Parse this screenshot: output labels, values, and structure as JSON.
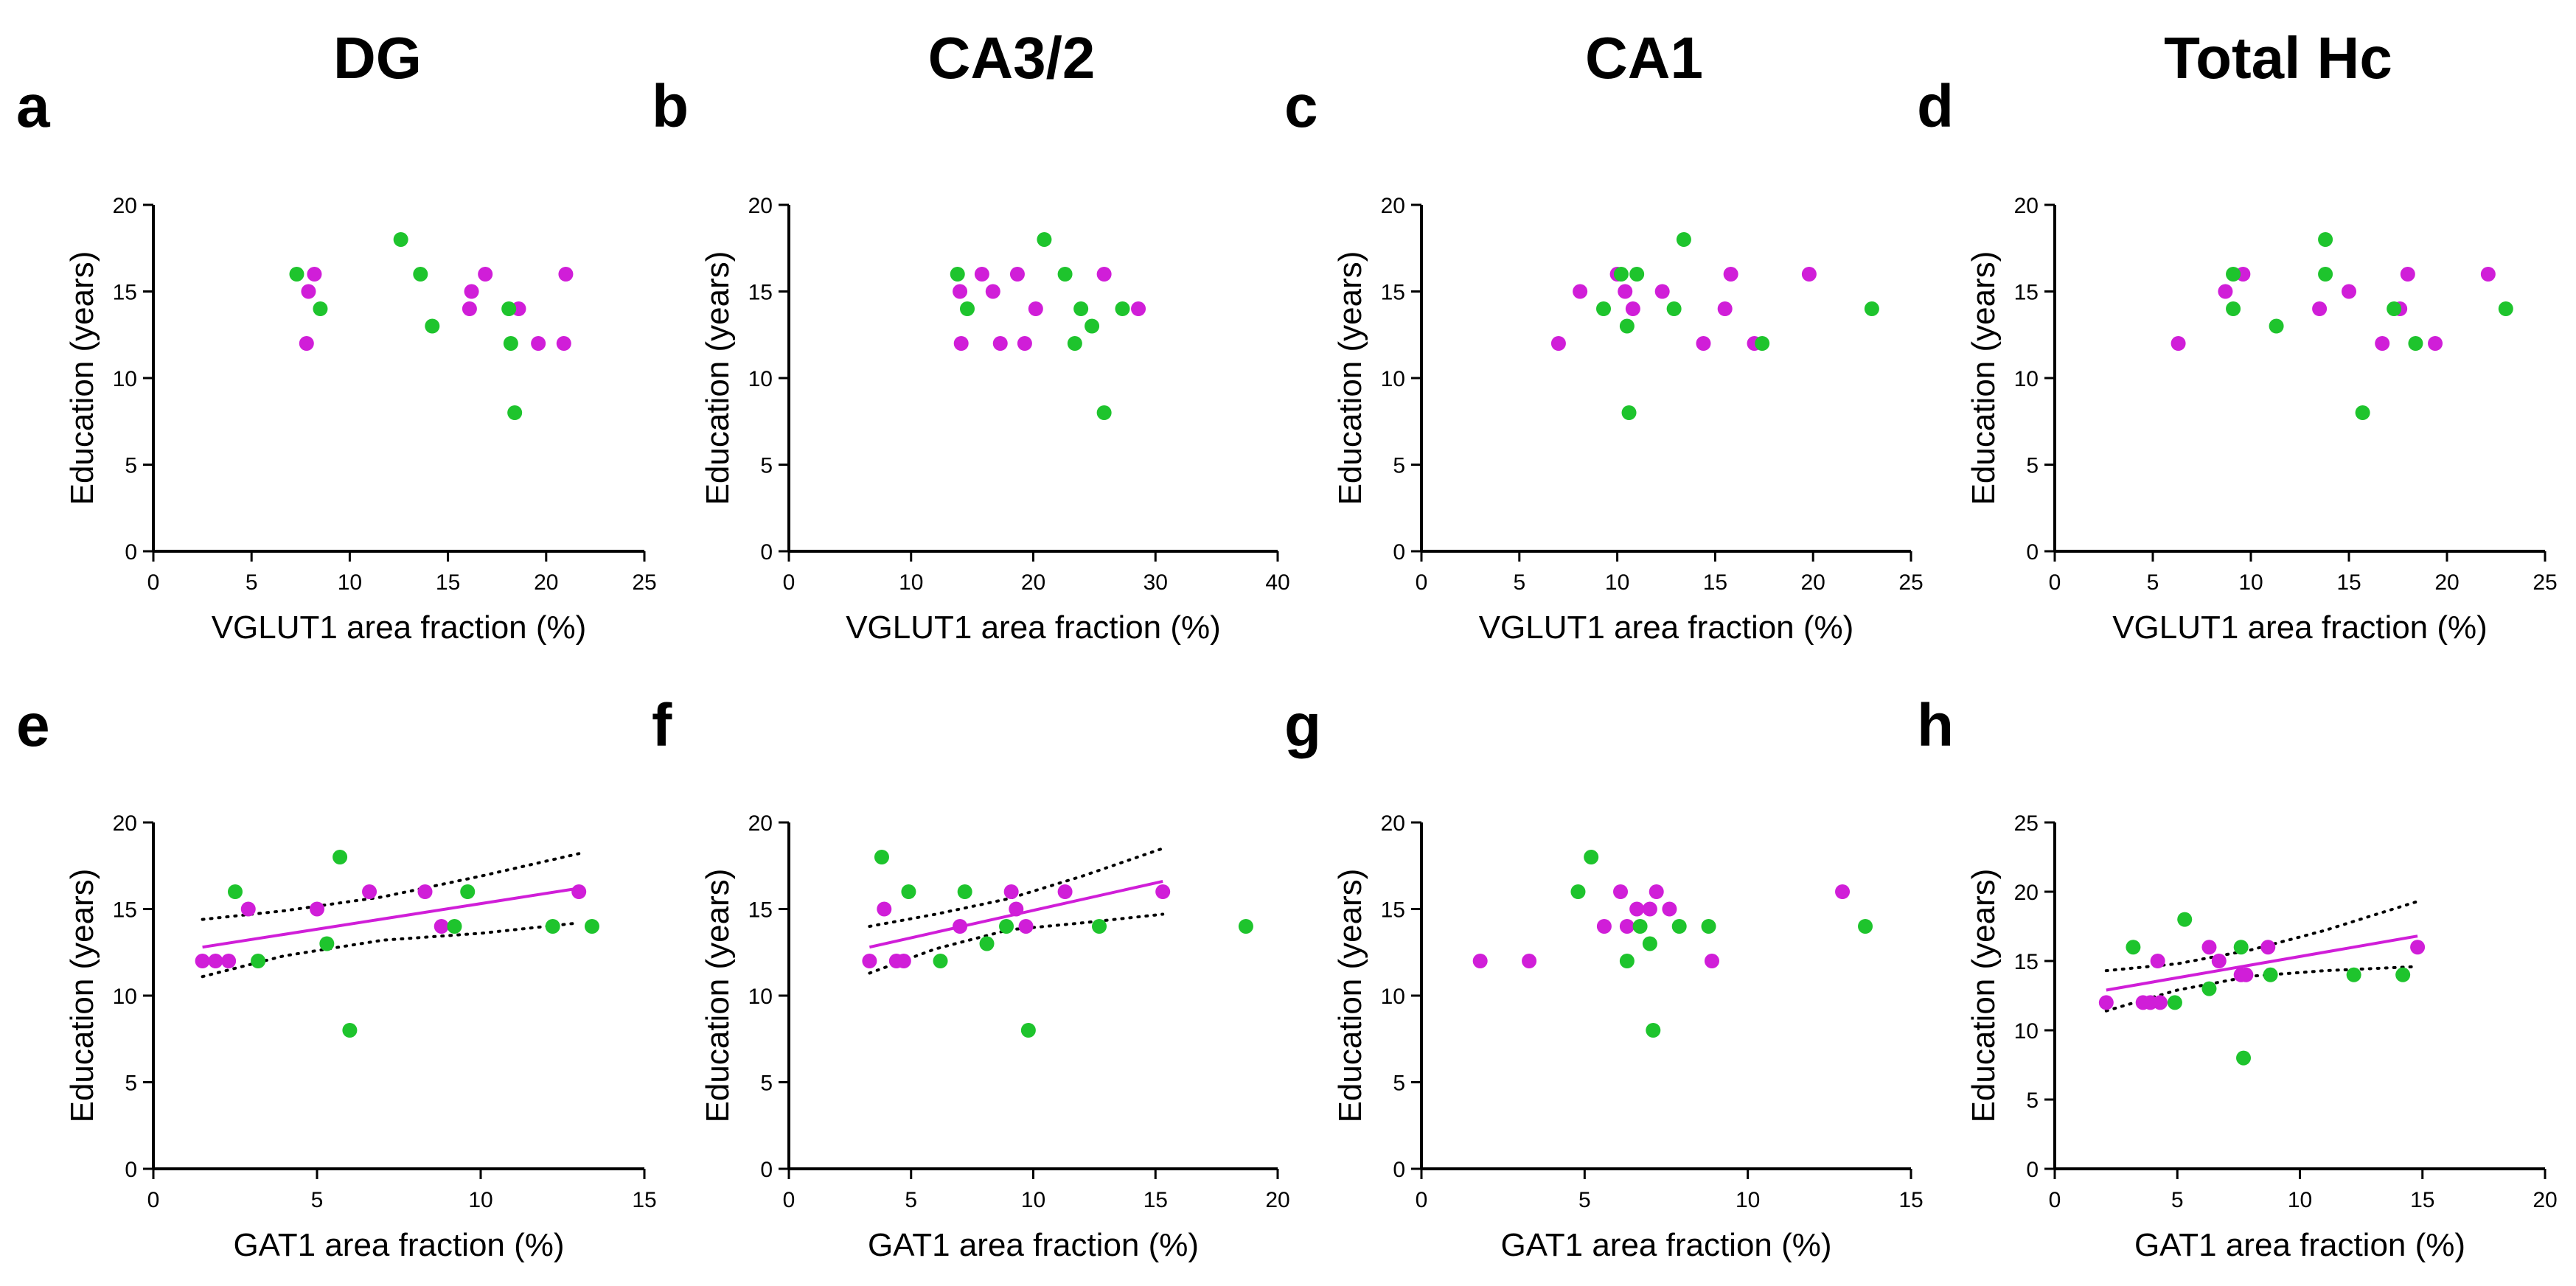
{
  "column_titles": [
    "DG",
    "CA3/2",
    "CA1",
    "Total Hc"
  ],
  "colors": {
    "group1": "#d01ed8",
    "group2": "#1ec42d",
    "fit_line": "#d01ed8",
    "ci_line": "#000000"
  },
  "chart_data": [
    {
      "panel": "a",
      "type": "scatter",
      "xlabel": "VGLUT1 area fraction (%)",
      "ylabel": "Education (years)",
      "xlim": [
        0,
        25
      ],
      "ylim": [
        0,
        20
      ],
      "xticks": [
        0,
        5,
        10,
        15,
        20,
        25
      ],
      "yticks": [
        0,
        5,
        10,
        15,
        20
      ],
      "series": [
        {
          "name": "group1",
          "color": "#d01ed8",
          "x": [
            7.9,
            8.2,
            7.8,
            16.2,
            16.1,
            16.9,
            18.6,
            19.6,
            20.9,
            21.0
          ],
          "y": [
            15,
            16,
            12,
            15,
            14,
            16,
            14,
            12,
            12,
            16
          ]
        },
        {
          "name": "group2",
          "color": "#1ec42d",
          "x": [
            7.3,
            8.5,
            12.6,
            13.6,
            14.2,
            18.1,
            18.2,
            18.4
          ],
          "y": [
            16,
            14,
            18,
            16,
            13,
            14,
            12,
            8
          ]
        }
      ]
    },
    {
      "panel": "b",
      "type": "scatter",
      "xlabel": "VGLUT1 area fraction (%)",
      "ylabel": "Education (years)",
      "xlim": [
        0,
        40
      ],
      "ylim": [
        0,
        20
      ],
      "xticks": [
        0,
        10,
        20,
        30,
        40
      ],
      "yticks": [
        0,
        5,
        10,
        15,
        20
      ],
      "series": [
        {
          "name": "group1",
          "color": "#d01ed8",
          "x": [
            14.0,
            14.1,
            15.8,
            16.7,
            17.3,
            18.7,
            19.3,
            20.2,
            25.8,
            28.6
          ],
          "y": [
            15,
            12,
            16,
            15,
            12,
            16,
            12,
            14,
            16,
            14
          ]
        },
        {
          "name": "group2",
          "color": "#1ec42d",
          "x": [
            13.8,
            14.6,
            20.9,
            22.6,
            23.4,
            23.9,
            24.8,
            25.8,
            27.3
          ],
          "y": [
            16,
            14,
            18,
            16,
            12,
            14,
            13,
            8,
            14
          ]
        }
      ]
    },
    {
      "panel": "c",
      "type": "scatter",
      "xlabel": "VGLUT1 area fraction (%)",
      "ylabel": "Education (years)",
      "xlim": [
        0,
        25
      ],
      "ylim": [
        0,
        20
      ],
      "xticks": [
        0,
        5,
        10,
        15,
        20,
        25
      ],
      "yticks": [
        0,
        5,
        10,
        15,
        20
      ],
      "series": [
        {
          "name": "group1",
          "color": "#d01ed8",
          "x": [
            7.0,
            8.1,
            10.0,
            10.4,
            10.8,
            12.3,
            14.4,
            15.5,
            15.8,
            17.0,
            19.8
          ],
          "y": [
            12,
            15,
            16,
            15,
            14,
            15,
            12,
            14,
            16,
            12,
            16
          ]
        },
        {
          "name": "group2",
          "color": "#1ec42d",
          "x": [
            9.3,
            10.2,
            10.5,
            10.6,
            11.0,
            12.9,
            13.4,
            17.4,
            23.0
          ],
          "y": [
            14,
            16,
            13,
            8,
            16,
            14,
            18,
            12,
            14
          ]
        }
      ]
    },
    {
      "panel": "d",
      "type": "scatter",
      "xlabel": "VGLUT1 area fraction (%)",
      "ylabel": "Education (years)",
      "xlim": [
        0,
        25
      ],
      "ylim": [
        0,
        20
      ],
      "xticks": [
        0,
        5,
        10,
        15,
        20,
        25
      ],
      "yticks": [
        0,
        5,
        10,
        15,
        20
      ],
      "series": [
        {
          "name": "group1",
          "color": "#d01ed8",
          "x": [
            6.3,
            8.7,
            9.6,
            13.5,
            15.0,
            16.7,
            17.6,
            18.0,
            19.4,
            22.1
          ],
          "y": [
            12,
            15,
            16,
            14,
            15,
            12,
            14,
            16,
            12,
            16
          ]
        },
        {
          "name": "group2",
          "color": "#1ec42d",
          "x": [
            9.1,
            9.1,
            11.3,
            13.8,
            13.8,
            15.7,
            17.3,
            18.4,
            23.0
          ],
          "y": [
            16,
            14,
            13,
            18,
            16,
            8,
            14,
            12,
            14
          ]
        }
      ]
    },
    {
      "panel": "e",
      "type": "scatter",
      "xlabel": "GAT1 area fraction (%)",
      "ylabel": "Education (years)",
      "xlim": [
        0,
        15
      ],
      "ylim": [
        0,
        20
      ],
      "xticks": [
        0,
        5,
        10,
        15
      ],
      "yticks": [
        0,
        5,
        10,
        15,
        20
      ],
      "series": [
        {
          "name": "group1",
          "color": "#d01ed8",
          "x": [
            1.5,
            1.9,
            2.3,
            2.9,
            5.0,
            6.6,
            8.3,
            8.8,
            13.0
          ],
          "y": [
            12,
            12,
            12,
            15,
            15,
            16,
            16,
            14,
            16
          ]
        },
        {
          "name": "group2",
          "color": "#1ec42d",
          "x": [
            2.5,
            3.2,
            5.3,
            5.7,
            6.0,
            9.2,
            9.6,
            12.2,
            13.4
          ],
          "y": [
            16,
            12,
            13,
            18,
            8,
            14,
            16,
            14,
            14
          ]
        }
      ],
      "fit": {
        "x": [
          1.5,
          13.0
        ],
        "y": [
          12.8,
          16.2
        ]
      },
      "ci_upper": {
        "x": [
          1.5,
          4,
          7,
          10,
          13.0
        ],
        "y": [
          14.4,
          14.9,
          15.7,
          16.9,
          18.2
        ]
      },
      "ci_lower": {
        "x": [
          1.5,
          4,
          7,
          10,
          13.0
        ],
        "y": [
          11.1,
          12.3,
          13.2,
          13.6,
          14.2
        ]
      }
    },
    {
      "panel": "f",
      "type": "scatter",
      "xlabel": "GAT1 area fraction (%)",
      "ylabel": "Education (years)",
      "xlim": [
        0,
        20
      ],
      "ylim": [
        0,
        20
      ],
      "xticks": [
        0,
        5,
        10,
        15,
        20
      ],
      "yticks": [
        0,
        5,
        10,
        15,
        20
      ],
      "series": [
        {
          "name": "group1",
          "color": "#d01ed8",
          "x": [
            3.3,
            3.9,
            4.4,
            4.7,
            7.0,
            9.1,
            9.3,
            9.7,
            11.3,
            15.3
          ],
          "y": [
            12,
            15,
            12,
            12,
            14,
            16,
            15,
            14,
            16,
            16
          ]
        },
        {
          "name": "group2",
          "color": "#1ec42d",
          "x": [
            3.8,
            4.9,
            6.2,
            7.2,
            8.1,
            8.9,
            9.8,
            12.7,
            18.7
          ],
          "y": [
            18,
            16,
            12,
            16,
            13,
            14,
            8,
            14,
            14
          ]
        }
      ],
      "fit": {
        "x": [
          3.3,
          15.3
        ],
        "y": [
          12.8,
          16.6
        ]
      },
      "ci_upper": {
        "x": [
          3.3,
          6,
          9,
          12,
          15.3
        ],
        "y": [
          14.0,
          14.7,
          15.6,
          16.9,
          18.5
        ]
      },
      "ci_lower": {
        "x": [
          3.3,
          6,
          9,
          12,
          15.3
        ],
        "y": [
          11.3,
          12.7,
          13.8,
          14.2,
          14.7
        ]
      }
    },
    {
      "panel": "g",
      "type": "scatter",
      "xlabel": "GAT1 area fraction (%)",
      "ylabel": "Education (years)",
      "xlim": [
        0,
        15
      ],
      "ylim": [
        0,
        20
      ],
      "xticks": [
        0,
        5,
        10,
        15
      ],
      "yticks": [
        0,
        5,
        10,
        15,
        20
      ],
      "series": [
        {
          "name": "group1",
          "color": "#d01ed8",
          "x": [
            1.8,
            3.3,
            5.6,
            6.1,
            6.3,
            6.6,
            7.0,
            7.2,
            7.6,
            8.9,
            12.9
          ],
          "y": [
            12,
            12,
            14,
            16,
            14,
            15,
            15,
            16,
            15,
            12,
            16
          ]
        },
        {
          "name": "group2",
          "color": "#1ec42d",
          "x": [
            4.8,
            5.2,
            6.3,
            6.7,
            7.0,
            7.1,
            7.9,
            8.8,
            13.6
          ],
          "y": [
            16,
            18,
            12,
            14,
            13,
            8,
            14,
            14,
            14
          ]
        }
      ]
    },
    {
      "panel": "h",
      "type": "scatter",
      "xlabel": "GAT1 area fraction (%)",
      "ylabel": "Education (years)",
      "xlim": [
        0,
        20
      ],
      "ylim": [
        0,
        25
      ],
      "xticks": [
        0,
        5,
        10,
        15,
        20
      ],
      "yticks": [
        0,
        5,
        10,
        15,
        20,
        25
      ],
      "series": [
        {
          "name": "group1",
          "color": "#d01ed8",
          "x": [
            2.1,
            3.6,
            3.9,
            4.2,
            4.3,
            6.3,
            6.7,
            7.6,
            7.8,
            8.7,
            14.8
          ],
          "y": [
            12,
            12,
            12,
            15,
            12,
            16,
            15,
            14,
            14,
            16,
            16
          ]
        },
        {
          "name": "group2",
          "color": "#1ec42d",
          "x": [
            3.2,
            4.9,
            5.3,
            6.3,
            7.6,
            7.7,
            8.8,
            12.2,
            14.2
          ],
          "y": [
            16,
            12,
            18,
            13,
            16,
            8,
            14,
            14,
            14
          ]
        }
      ],
      "fit": {
        "x": [
          2.1,
          14.8
        ],
        "y": [
          12.9,
          16.8
        ]
      },
      "ci_upper": {
        "x": [
          2.1,
          5,
          8,
          11,
          14.8
        ],
        "y": [
          14.3,
          14.8,
          15.8,
          17.2,
          19.3
        ]
      },
      "ci_lower": {
        "x": [
          2.1,
          5,
          8,
          11,
          14.8
        ],
        "y": [
          11.4,
          12.9,
          13.9,
          14.3,
          14.6
        ]
      }
    }
  ]
}
